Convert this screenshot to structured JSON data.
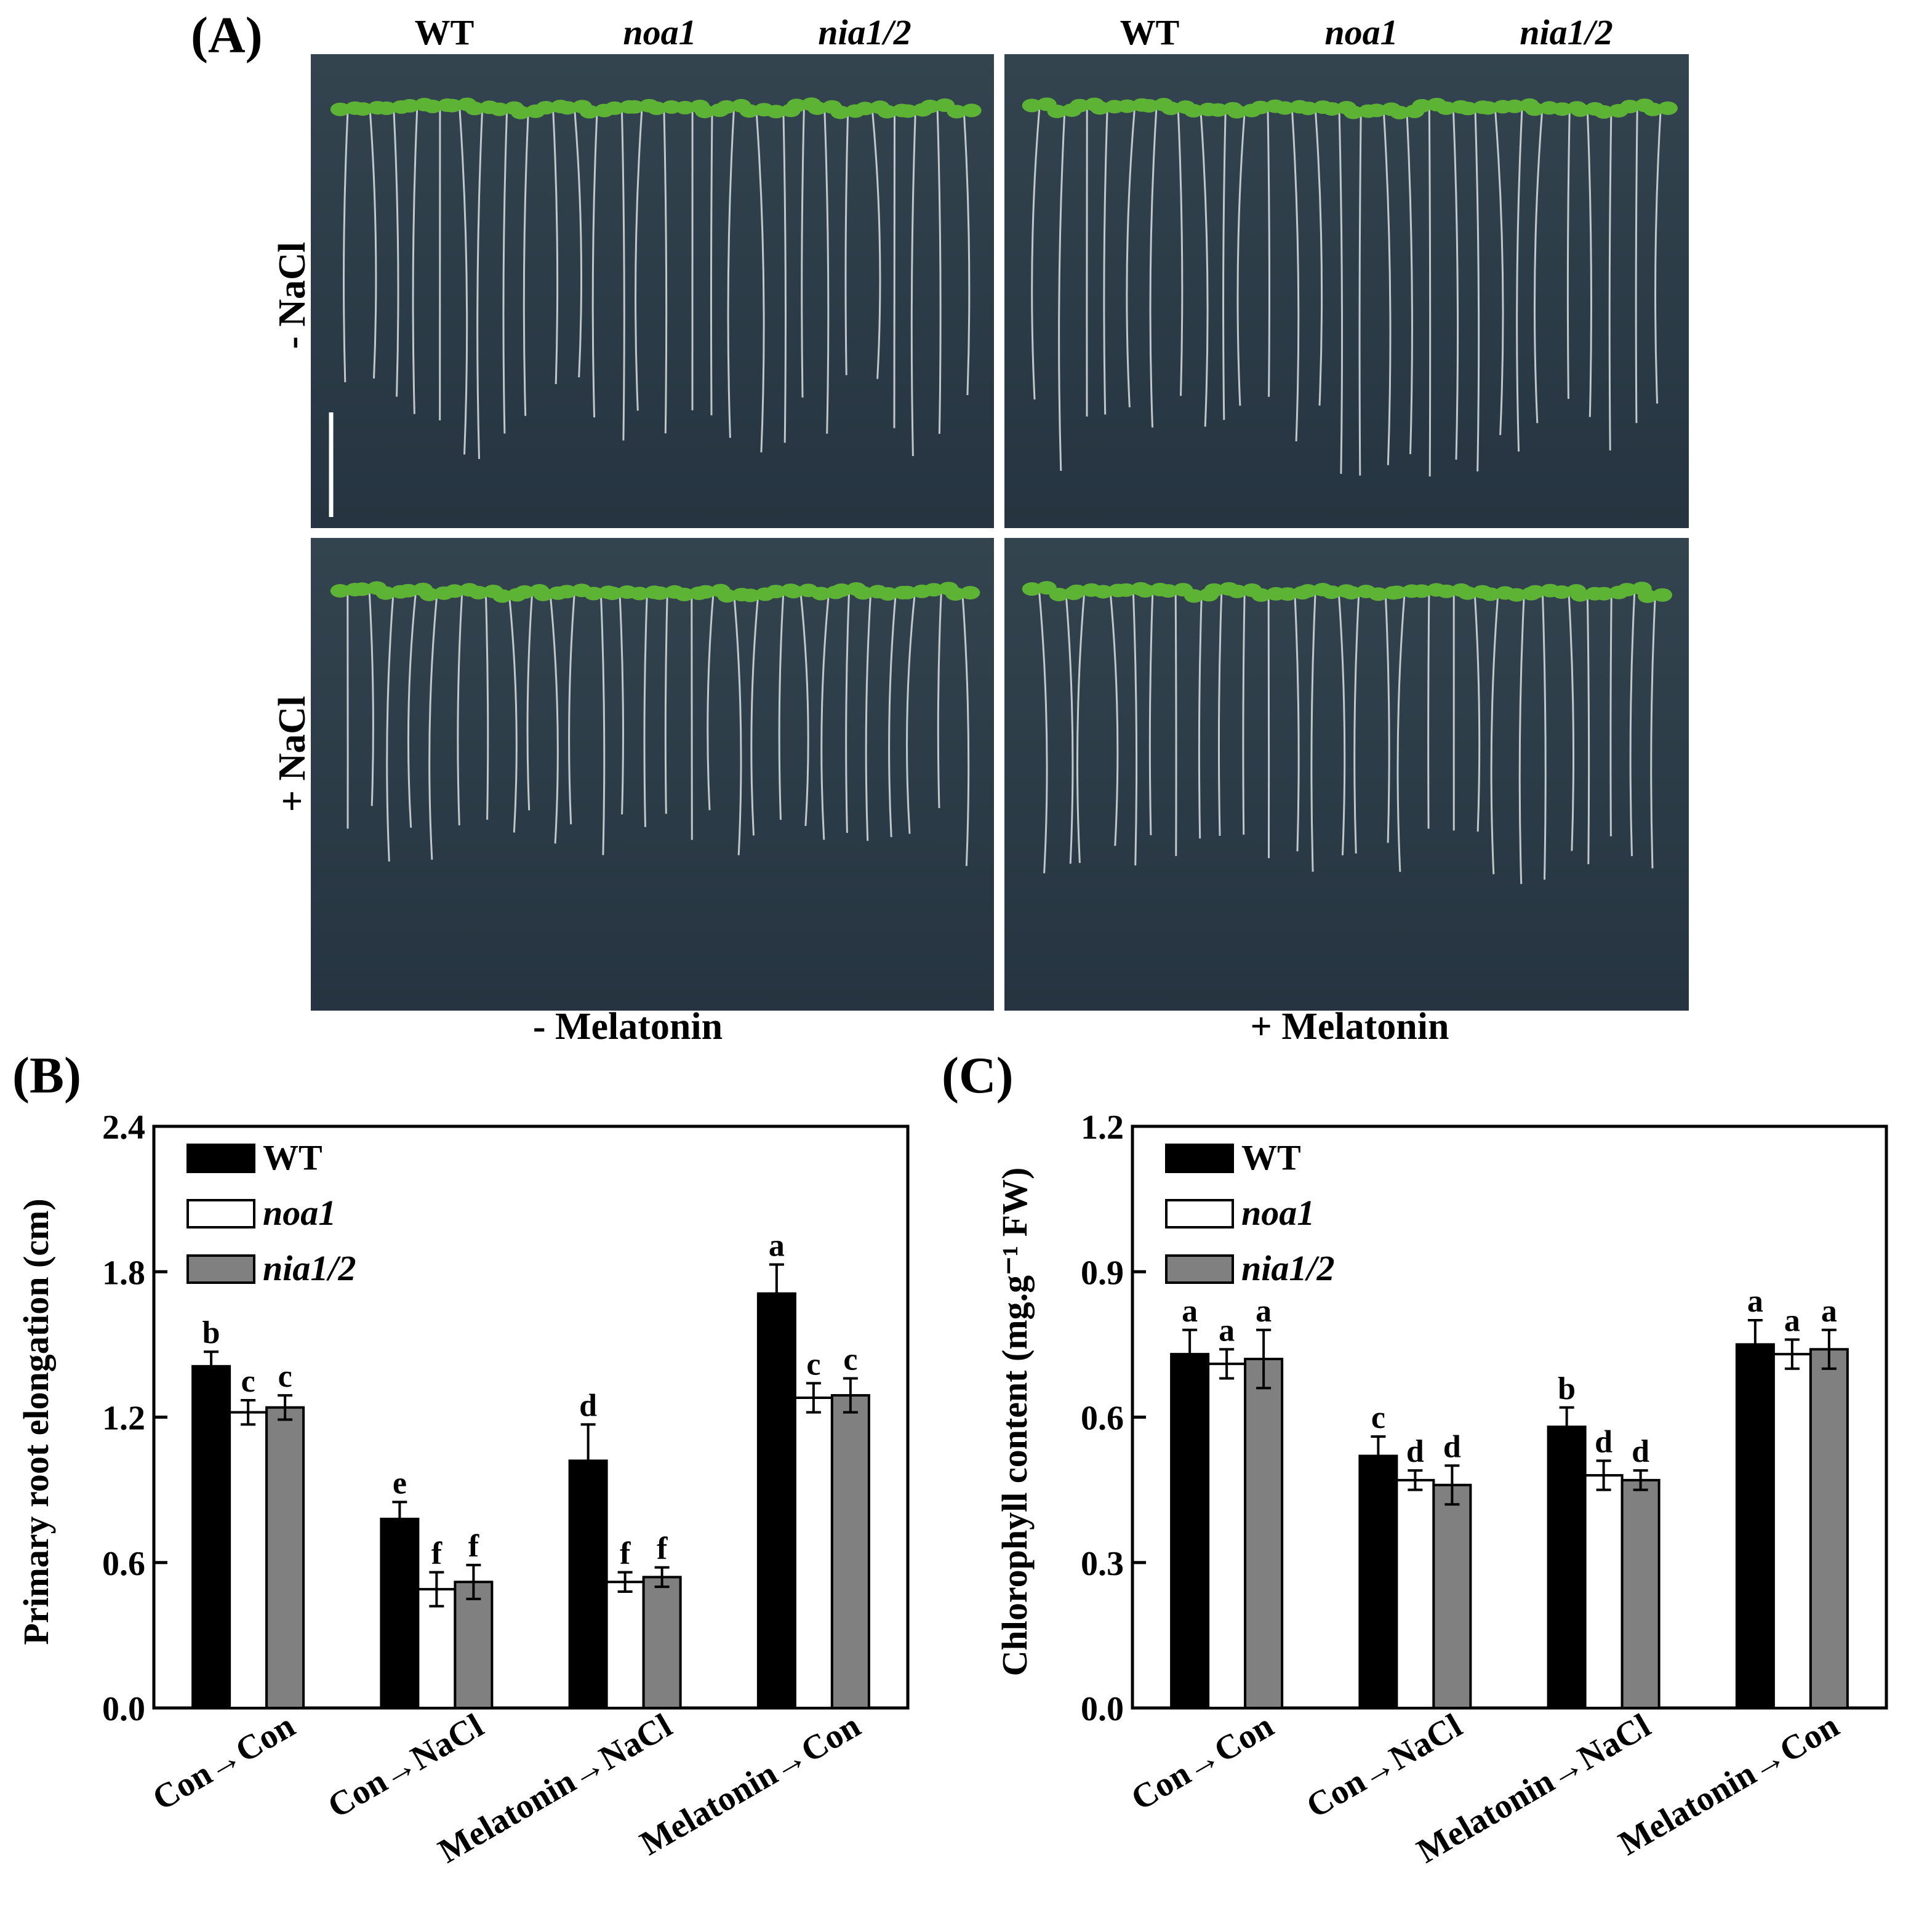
{
  "panel_labels": {
    "a": "(A)",
    "b": "(B)",
    "c": "(C)"
  },
  "photo": {
    "columns": {
      "left": [
        "WT",
        "noa1",
        "nia1/2"
      ],
      "right": [
        "WT",
        "noa1",
        "nia1/2"
      ]
    },
    "rows": [
      "- NaCl",
      "+ NaCl"
    ],
    "bottom": [
      "- Melatonin",
      "+ Melatonin"
    ],
    "colors": {
      "plate": "#2e3f4c",
      "seedling": "#5cb334",
      "root": "#d9e0e2"
    }
  },
  "colors": {
    "WT": "#000000",
    "noa1": "#ffffff",
    "nia1/2": "#808080"
  },
  "chart_data": [
    {
      "type": "bar",
      "panel": "(B)",
      "categories": [
        "Con→Con",
        "Con→NaCl",
        "Melatonin→NaCl",
        "Melatonin→Con"
      ],
      "ylabel": "Primary root elongation (cm)",
      "ylim": [
        0,
        2.4
      ],
      "yticks": [
        "0.0",
        "0.6",
        "1.2",
        "1.8",
        "2.4"
      ],
      "legend_position": "top-left",
      "series": [
        {
          "name": "WT",
          "values": [
            1.41,
            0.78,
            1.02,
            1.71
          ],
          "errors": [
            0.06,
            0.07,
            0.15,
            0.12
          ],
          "letters": [
            "b",
            "e",
            "d",
            "a"
          ]
        },
        {
          "name": "noa1",
          "values": [
            1.22,
            0.49,
            0.52,
            1.28
          ],
          "errors": [
            0.05,
            0.07,
            0.04,
            0.06
          ],
          "letters": [
            "c",
            "f",
            "f",
            "c"
          ]
        },
        {
          "name": "nia1/2",
          "values": [
            1.24,
            0.52,
            0.54,
            1.29
          ],
          "errors": [
            0.05,
            0.07,
            0.04,
            0.07
          ],
          "letters": [
            "c",
            "f",
            "f",
            "c"
          ]
        }
      ]
    },
    {
      "type": "bar",
      "panel": "(C)",
      "categories": [
        "Con→Con",
        "Con→NaCl",
        "Melatonin→NaCl",
        "Melatonin→Con"
      ],
      "ylabel": "Chlorophyll content (mg.g⁻¹ FW)",
      "ylim": [
        0,
        1.2
      ],
      "yticks": [
        "0.0",
        "0.3",
        "0.6",
        "0.9",
        "1.2"
      ],
      "legend_position": "top-left",
      "series": [
        {
          "name": "WT",
          "values": [
            0.73,
            0.52,
            0.58,
            0.75
          ],
          "errors": [
            0.05,
            0.04,
            0.04,
            0.05
          ],
          "letters": [
            "a",
            "c",
            "b",
            "a"
          ]
        },
        {
          "name": "noa1",
          "values": [
            0.71,
            0.47,
            0.48,
            0.73
          ],
          "errors": [
            0.03,
            0.02,
            0.03,
            0.03
          ],
          "letters": [
            "a",
            "d",
            "d",
            "a"
          ]
        },
        {
          "name": "nia1/2",
          "values": [
            0.72,
            0.46,
            0.47,
            0.74
          ],
          "errors": [
            0.06,
            0.04,
            0.02,
            0.04
          ],
          "letters": [
            "a",
            "d",
            "d",
            "a"
          ]
        }
      ]
    }
  ]
}
